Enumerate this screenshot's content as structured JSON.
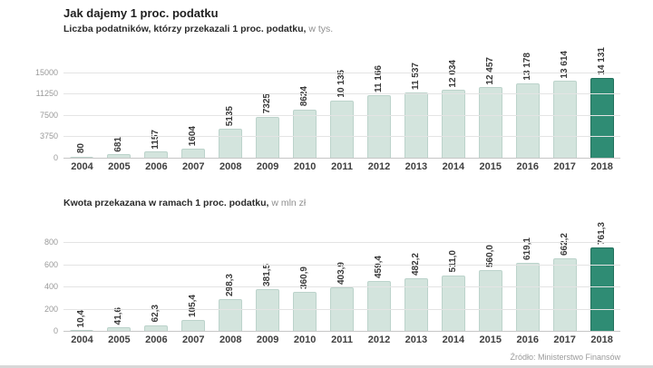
{
  "title": "Jak dajemy 1 proc. podatku",
  "source": "Źródło: Ministerstwo Finansów",
  "colors": {
    "bar": "#d3e4dd",
    "bar_border": "#bcd3cb",
    "bar_highlight": "#2f8c74",
    "bar_highlight_border": "#24715d"
  },
  "chart_data": [
    {
      "type": "bar",
      "title_bold": "Liczba podatników, którzy przekazali 1 proc. podatku,",
      "title_light": " w tys.",
      "categories": [
        "2004",
        "2005",
        "2006",
        "2007",
        "2008",
        "2009",
        "2010",
        "2011",
        "2012",
        "2013",
        "2014",
        "2015",
        "2016",
        "2017",
        "2018"
      ],
      "values": [
        80,
        681,
        1157,
        1604,
        5135,
        7325,
        8624,
        10135,
        11166,
        11537,
        12034,
        12457,
        13178,
        13614,
        14131
      ],
      "labels": [
        "80",
        "681",
        "1157",
        "1604",
        "5135",
        "7325",
        "8624",
        "10 135",
        "11 166",
        "11 537",
        "12 034",
        "12 457",
        "13 178",
        "13 614",
        "14 131"
      ],
      "yticks": [
        0,
        3750,
        7500,
        11250,
        15000
      ],
      "ytick_labels": [
        "0",
        "3750",
        "7500",
        "11250",
        "15000"
      ],
      "ylim": [
        0,
        15000
      ],
      "highlight_index": 14,
      "grid": true,
      "legend": "none"
    },
    {
      "type": "bar",
      "title_bold": "Kwota przekazana w ramach 1 proc. podatku,",
      "title_light": " w mln zł",
      "categories": [
        "2004",
        "2005",
        "2006",
        "2007",
        "2008",
        "2009",
        "2010",
        "2011",
        "2012",
        "2013",
        "2014",
        "2015",
        "2016",
        "2017",
        "2018"
      ],
      "values": [
        10.4,
        41.6,
        62.3,
        105.4,
        298.3,
        381.5,
        360.9,
        403.9,
        459.4,
        482.2,
        511.0,
        560.0,
        619.1,
        662.2,
        761.3
      ],
      "labels": [
        "10,4",
        "41,6",
        "62,3",
        "105,4",
        "298,3",
        "381,5",
        "360,9",
        "403,9",
        "459,4",
        "482,2",
        "511,0",
        "560,0",
        "619,1",
        "662,2",
        "761,3"
      ],
      "yticks": [
        0,
        200,
        400,
        600,
        800
      ],
      "ytick_labels": [
        "0",
        "200",
        "400",
        "600",
        "800"
      ],
      "ylim": [
        0,
        800
      ],
      "highlight_index": 14,
      "grid": true,
      "legend": "none"
    }
  ]
}
